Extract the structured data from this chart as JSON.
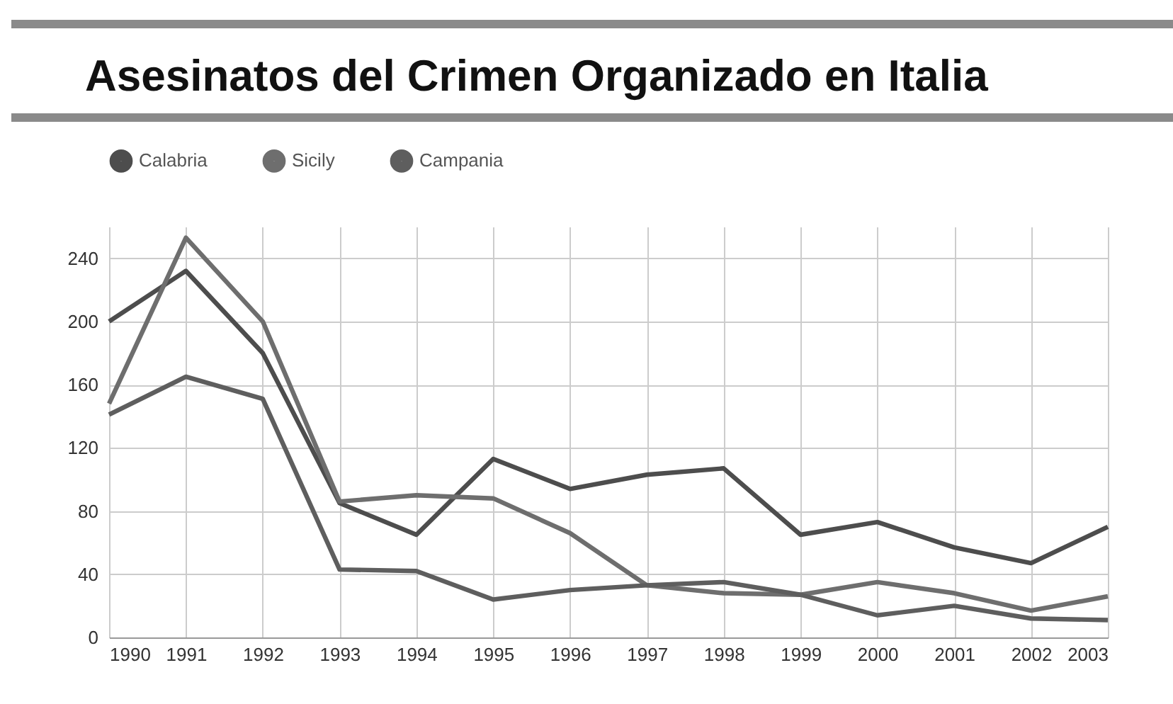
{
  "chart_data": {
    "type": "line",
    "title": "Asesinatos del Crimen Organizado en Italia",
    "x": [
      1990,
      1991,
      1992,
      1993,
      1994,
      1995,
      1996,
      1997,
      1998,
      1999,
      2000,
      2001,
      2002,
      2003
    ],
    "series": [
      {
        "name": "Calabria",
        "color": "#4d4d4d",
        "values": [
          200,
          232,
          180,
          85,
          65,
          113,
          94,
          103,
          107,
          65,
          73,
          57,
          47,
          70
        ]
      },
      {
        "name": "Sicily",
        "color": "#6e6e6e",
        "values": [
          148,
          253,
          200,
          86,
          90,
          88,
          66,
          33,
          28,
          27,
          35,
          28,
          17,
          26
        ]
      },
      {
        "name": "Campania",
        "color": "#5e5e5e",
        "values": [
          141,
          165,
          151,
          43,
          42,
          24,
          30,
          33,
          35,
          27,
          14,
          20,
          12,
          11
        ]
      }
    ],
    "xlim": [
      1990,
      2003
    ],
    "xticks": [
      1990,
      1991,
      1992,
      1993,
      1994,
      1995,
      1996,
      1997,
      1998,
      1999,
      2000,
      2001,
      2002,
      2003
    ],
    "ylim": [
      0,
      260
    ],
    "yticks": [
      0,
      40,
      80,
      120,
      160,
      200,
      240
    ],
    "grid": true,
    "legend": "top left",
    "marker": "none",
    "line_style": "solid"
  }
}
